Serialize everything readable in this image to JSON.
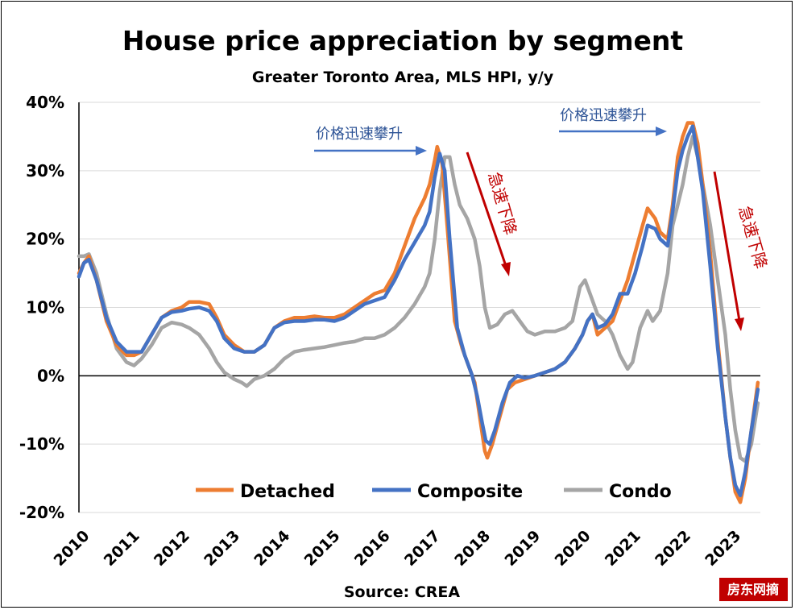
{
  "chart_data": {
    "type": "line",
    "title": "House price appreciation by segment",
    "subtitle": "Greater Toronto Area, MLS HPI, y/y",
    "source": "Source: CREA",
    "xlabel": "",
    "ylabel": "",
    "x_ticks": [
      "2010",
      "2011",
      "2012",
      "2013",
      "2014",
      "2015",
      "2016",
      "2017",
      "2018",
      "2019",
      "2020",
      "2021",
      "2022",
      "2023"
    ],
    "xlim": [
      2010.0,
      2023.6
    ],
    "y_ticks": [
      "40%",
      "30%",
      "20%",
      "10%",
      "0%",
      "-10%",
      "-20%"
    ],
    "y_tick_values": [
      40,
      30,
      20,
      10,
      0,
      -10,
      -20
    ],
    "ylim": [
      -20,
      40
    ],
    "grid": "horizontal",
    "legend_position": "bottom",
    "series": [
      {
        "name": "Detached",
        "color": "#ed7d31",
        "points": [
          [
            2010.0,
            15
          ],
          [
            2010.1,
            16.5
          ],
          [
            2010.2,
            17.5
          ],
          [
            2010.35,
            14
          ],
          [
            2010.55,
            8
          ],
          [
            2010.75,
            4.5
          ],
          [
            2010.95,
            3
          ],
          [
            2011.1,
            3
          ],
          [
            2011.25,
            3.5
          ],
          [
            2011.45,
            6
          ],
          [
            2011.65,
            8.5
          ],
          [
            2011.85,
            9.5
          ],
          [
            2012.05,
            10
          ],
          [
            2012.2,
            10.8
          ],
          [
            2012.4,
            10.8
          ],
          [
            2012.6,
            10.5
          ],
          [
            2012.75,
            8.5
          ],
          [
            2012.9,
            6
          ],
          [
            2013.1,
            4.5
          ],
          [
            2013.3,
            3.5
          ],
          [
            2013.5,
            3.5
          ],
          [
            2013.7,
            4.5
          ],
          [
            2013.9,
            7
          ],
          [
            2014.1,
            8
          ],
          [
            2014.3,
            8.5
          ],
          [
            2014.5,
            8.5
          ],
          [
            2014.7,
            8.7
          ],
          [
            2014.9,
            8.5
          ],
          [
            2015.1,
            8.5
          ],
          [
            2015.3,
            9
          ],
          [
            2015.5,
            10
          ],
          [
            2015.7,
            11
          ],
          [
            2015.9,
            12
          ],
          [
            2016.1,
            12.5
          ],
          [
            2016.3,
            15
          ],
          [
            2016.5,
            19
          ],
          [
            2016.7,
            23
          ],
          [
            2016.9,
            26
          ],
          [
            2017.0,
            28
          ],
          [
            2017.1,
            31.5
          ],
          [
            2017.15,
            33.5
          ],
          [
            2017.25,
            31
          ],
          [
            2017.35,
            22
          ],
          [
            2017.5,
            8
          ],
          [
            2017.65,
            4
          ],
          [
            2017.8,
            1
          ],
          [
            2017.9,
            -1
          ],
          [
            2018.0,
            -6
          ],
          [
            2018.1,
            -11
          ],
          [
            2018.15,
            -12
          ],
          [
            2018.25,
            -10
          ],
          [
            2018.4,
            -6
          ],
          [
            2018.55,
            -2
          ],
          [
            2018.7,
            -1
          ],
          [
            2018.9,
            -0.5
          ],
          [
            2019.1,
            0
          ],
          [
            2019.3,
            0.5
          ],
          [
            2019.5,
            1
          ],
          [
            2019.7,
            2
          ],
          [
            2019.9,
            4
          ],
          [
            2020.05,
            6
          ],
          [
            2020.15,
            8
          ],
          [
            2020.25,
            9
          ],
          [
            2020.35,
            6
          ],
          [
            2020.5,
            7
          ],
          [
            2020.65,
            8
          ],
          [
            2020.8,
            11
          ],
          [
            2020.95,
            14
          ],
          [
            2021.1,
            18
          ],
          [
            2021.25,
            22
          ],
          [
            2021.35,
            24.5
          ],
          [
            2021.5,
            23
          ],
          [
            2021.6,
            21
          ],
          [
            2021.75,
            20
          ],
          [
            2021.85,
            25
          ],
          [
            2021.95,
            32
          ],
          [
            2022.05,
            35
          ],
          [
            2022.15,
            37
          ],
          [
            2022.25,
            37
          ],
          [
            2022.35,
            34
          ],
          [
            2022.45,
            28
          ],
          [
            2022.6,
            18
          ],
          [
            2022.75,
            5
          ],
          [
            2022.9,
            -6
          ],
          [
            2023.0,
            -12
          ],
          [
            2023.1,
            -17
          ],
          [
            2023.2,
            -18.5
          ],
          [
            2023.3,
            -15
          ],
          [
            2023.42,
            -8
          ],
          [
            2023.55,
            -1
          ]
        ]
      },
      {
        "name": "Composite",
        "color": "#4472c4",
        "points": [
          [
            2010.0,
            14.5
          ],
          [
            2010.1,
            16.5
          ],
          [
            2010.2,
            17
          ],
          [
            2010.35,
            14
          ],
          [
            2010.55,
            8.5
          ],
          [
            2010.75,
            5
          ],
          [
            2010.95,
            3.5
          ],
          [
            2011.1,
            3.5
          ],
          [
            2011.25,
            3.5
          ],
          [
            2011.45,
            6
          ],
          [
            2011.65,
            8.5
          ],
          [
            2011.85,
            9.3
          ],
          [
            2012.05,
            9.5
          ],
          [
            2012.2,
            9.8
          ],
          [
            2012.4,
            10
          ],
          [
            2012.6,
            9.5
          ],
          [
            2012.75,
            8
          ],
          [
            2012.9,
            5.5
          ],
          [
            2013.1,
            4
          ],
          [
            2013.3,
            3.5
          ],
          [
            2013.5,
            3.5
          ],
          [
            2013.7,
            4.5
          ],
          [
            2013.9,
            7
          ],
          [
            2014.1,
            7.8
          ],
          [
            2014.3,
            8
          ],
          [
            2014.5,
            8
          ],
          [
            2014.7,
            8.2
          ],
          [
            2014.9,
            8.2
          ],
          [
            2015.1,
            8
          ],
          [
            2015.3,
            8.5
          ],
          [
            2015.5,
            9.5
          ],
          [
            2015.7,
            10.5
          ],
          [
            2015.9,
            11
          ],
          [
            2016.1,
            11.5
          ],
          [
            2016.3,
            14
          ],
          [
            2016.5,
            17
          ],
          [
            2016.7,
            19.5
          ],
          [
            2016.9,
            22
          ],
          [
            2017.0,
            24
          ],
          [
            2017.1,
            29
          ],
          [
            2017.2,
            32.5
          ],
          [
            2017.3,
            30
          ],
          [
            2017.4,
            20
          ],
          [
            2017.55,
            7
          ],
          [
            2017.7,
            3
          ],
          [
            2017.85,
            0
          ],
          [
            2017.95,
            -3
          ],
          [
            2018.05,
            -7
          ],
          [
            2018.12,
            -9.5
          ],
          [
            2018.2,
            -10
          ],
          [
            2018.3,
            -8
          ],
          [
            2018.45,
            -4
          ],
          [
            2018.6,
            -1
          ],
          [
            2018.75,
            0
          ],
          [
            2018.9,
            -0.3
          ],
          [
            2019.1,
            0
          ],
          [
            2019.3,
            0.5
          ],
          [
            2019.5,
            1
          ],
          [
            2019.7,
            2
          ],
          [
            2019.9,
            4
          ],
          [
            2020.05,
            6
          ],
          [
            2020.15,
            8
          ],
          [
            2020.25,
            9
          ],
          [
            2020.35,
            7
          ],
          [
            2020.5,
            7.5
          ],
          [
            2020.65,
            9
          ],
          [
            2020.8,
            12
          ],
          [
            2020.95,
            12
          ],
          [
            2021.1,
            15
          ],
          [
            2021.25,
            19
          ],
          [
            2021.35,
            22
          ],
          [
            2021.5,
            21.5
          ],
          [
            2021.6,
            20
          ],
          [
            2021.75,
            19
          ],
          [
            2021.85,
            24
          ],
          [
            2021.95,
            30
          ],
          [
            2022.05,
            33
          ],
          [
            2022.15,
            35
          ],
          [
            2022.25,
            36.5
          ],
          [
            2022.35,
            32
          ],
          [
            2022.45,
            27
          ],
          [
            2022.6,
            16
          ],
          [
            2022.75,
            4
          ],
          [
            2022.9,
            -6
          ],
          [
            2023.0,
            -12
          ],
          [
            2023.1,
            -16
          ],
          [
            2023.2,
            -17.5
          ],
          [
            2023.3,
            -14
          ],
          [
            2023.42,
            -8
          ],
          [
            2023.55,
            -2
          ]
        ]
      },
      {
        "name": "Condo",
        "color": "#a5a5a5",
        "points": [
          [
            2010.0,
            17.5
          ],
          [
            2010.1,
            17.5
          ],
          [
            2010.2,
            17.8
          ],
          [
            2010.35,
            15
          ],
          [
            2010.55,
            9
          ],
          [
            2010.75,
            4
          ],
          [
            2010.95,
            2
          ],
          [
            2011.1,
            1.5
          ],
          [
            2011.25,
            2.5
          ],
          [
            2011.45,
            4.5
          ],
          [
            2011.65,
            7
          ],
          [
            2011.85,
            7.8
          ],
          [
            2012.05,
            7.5
          ],
          [
            2012.2,
            7
          ],
          [
            2012.4,
            6
          ],
          [
            2012.6,
            4
          ],
          [
            2012.75,
            2
          ],
          [
            2012.9,
            0.5
          ],
          [
            2013.1,
            -0.5
          ],
          [
            2013.25,
            -1
          ],
          [
            2013.35,
            -1.5
          ],
          [
            2013.5,
            -0.5
          ],
          [
            2013.7,
            0
          ],
          [
            2013.9,
            1
          ],
          [
            2014.1,
            2.5
          ],
          [
            2014.3,
            3.5
          ],
          [
            2014.5,
            3.8
          ],
          [
            2014.7,
            4
          ],
          [
            2014.9,
            4.2
          ],
          [
            2015.1,
            4.5
          ],
          [
            2015.3,
            4.8
          ],
          [
            2015.5,
            5
          ],
          [
            2015.7,
            5.5
          ],
          [
            2015.9,
            5.5
          ],
          [
            2016.1,
            6
          ],
          [
            2016.3,
            7
          ],
          [
            2016.5,
            8.5
          ],
          [
            2016.7,
            10.5
          ],
          [
            2016.9,
            13
          ],
          [
            2017.0,
            15
          ],
          [
            2017.1,
            20
          ],
          [
            2017.2,
            27
          ],
          [
            2017.3,
            32
          ],
          [
            2017.4,
            32
          ],
          [
            2017.5,
            28
          ],
          [
            2017.6,
            25
          ],
          [
            2017.75,
            23
          ],
          [
            2017.9,
            20
          ],
          [
            2018.0,
            16
          ],
          [
            2018.1,
            10
          ],
          [
            2018.2,
            7
          ],
          [
            2018.35,
            7.5
          ],
          [
            2018.5,
            9
          ],
          [
            2018.65,
            9.5
          ],
          [
            2018.8,
            8
          ],
          [
            2018.95,
            6.5
          ],
          [
            2019.1,
            6
          ],
          [
            2019.3,
            6.5
          ],
          [
            2019.5,
            6.5
          ],
          [
            2019.7,
            7
          ],
          [
            2019.85,
            8
          ],
          [
            2020.0,
            13
          ],
          [
            2020.1,
            14
          ],
          [
            2020.2,
            12
          ],
          [
            2020.35,
            9
          ],
          [
            2020.5,
            8
          ],
          [
            2020.65,
            6
          ],
          [
            2020.8,
            3
          ],
          [
            2020.95,
            1
          ],
          [
            2021.05,
            2
          ],
          [
            2021.2,
            7
          ],
          [
            2021.35,
            9.5
          ],
          [
            2021.45,
            8
          ],
          [
            2021.6,
            9.5
          ],
          [
            2021.75,
            15
          ],
          [
            2021.85,
            22
          ],
          [
            2021.95,
            25
          ],
          [
            2022.05,
            28
          ],
          [
            2022.15,
            32
          ],
          [
            2022.25,
            35
          ],
          [
            2022.35,
            32
          ],
          [
            2022.45,
            28
          ],
          [
            2022.6,
            22
          ],
          [
            2022.75,
            14
          ],
          [
            2022.9,
            6
          ],
          [
            2023.0,
            -2
          ],
          [
            2023.1,
            -8
          ],
          [
            2023.2,
            -12
          ],
          [
            2023.3,
            -12.5
          ],
          [
            2023.42,
            -10
          ],
          [
            2023.55,
            -4
          ]
        ]
      }
    ],
    "annotations": [
      {
        "text": "价格迅速攀升",
        "color": "#4472c4",
        "kind": "rise"
      },
      {
        "text": "急速下降",
        "color": "#c00000",
        "kind": "fall"
      },
      {
        "text": "价格迅速攀升",
        "color": "#4472c4",
        "kind": "rise"
      },
      {
        "text": "急速下降",
        "color": "#c00000",
        "kind": "fall"
      }
    ]
  },
  "watermark": {
    "text": "房东网摘",
    "color": "#c00000"
  }
}
